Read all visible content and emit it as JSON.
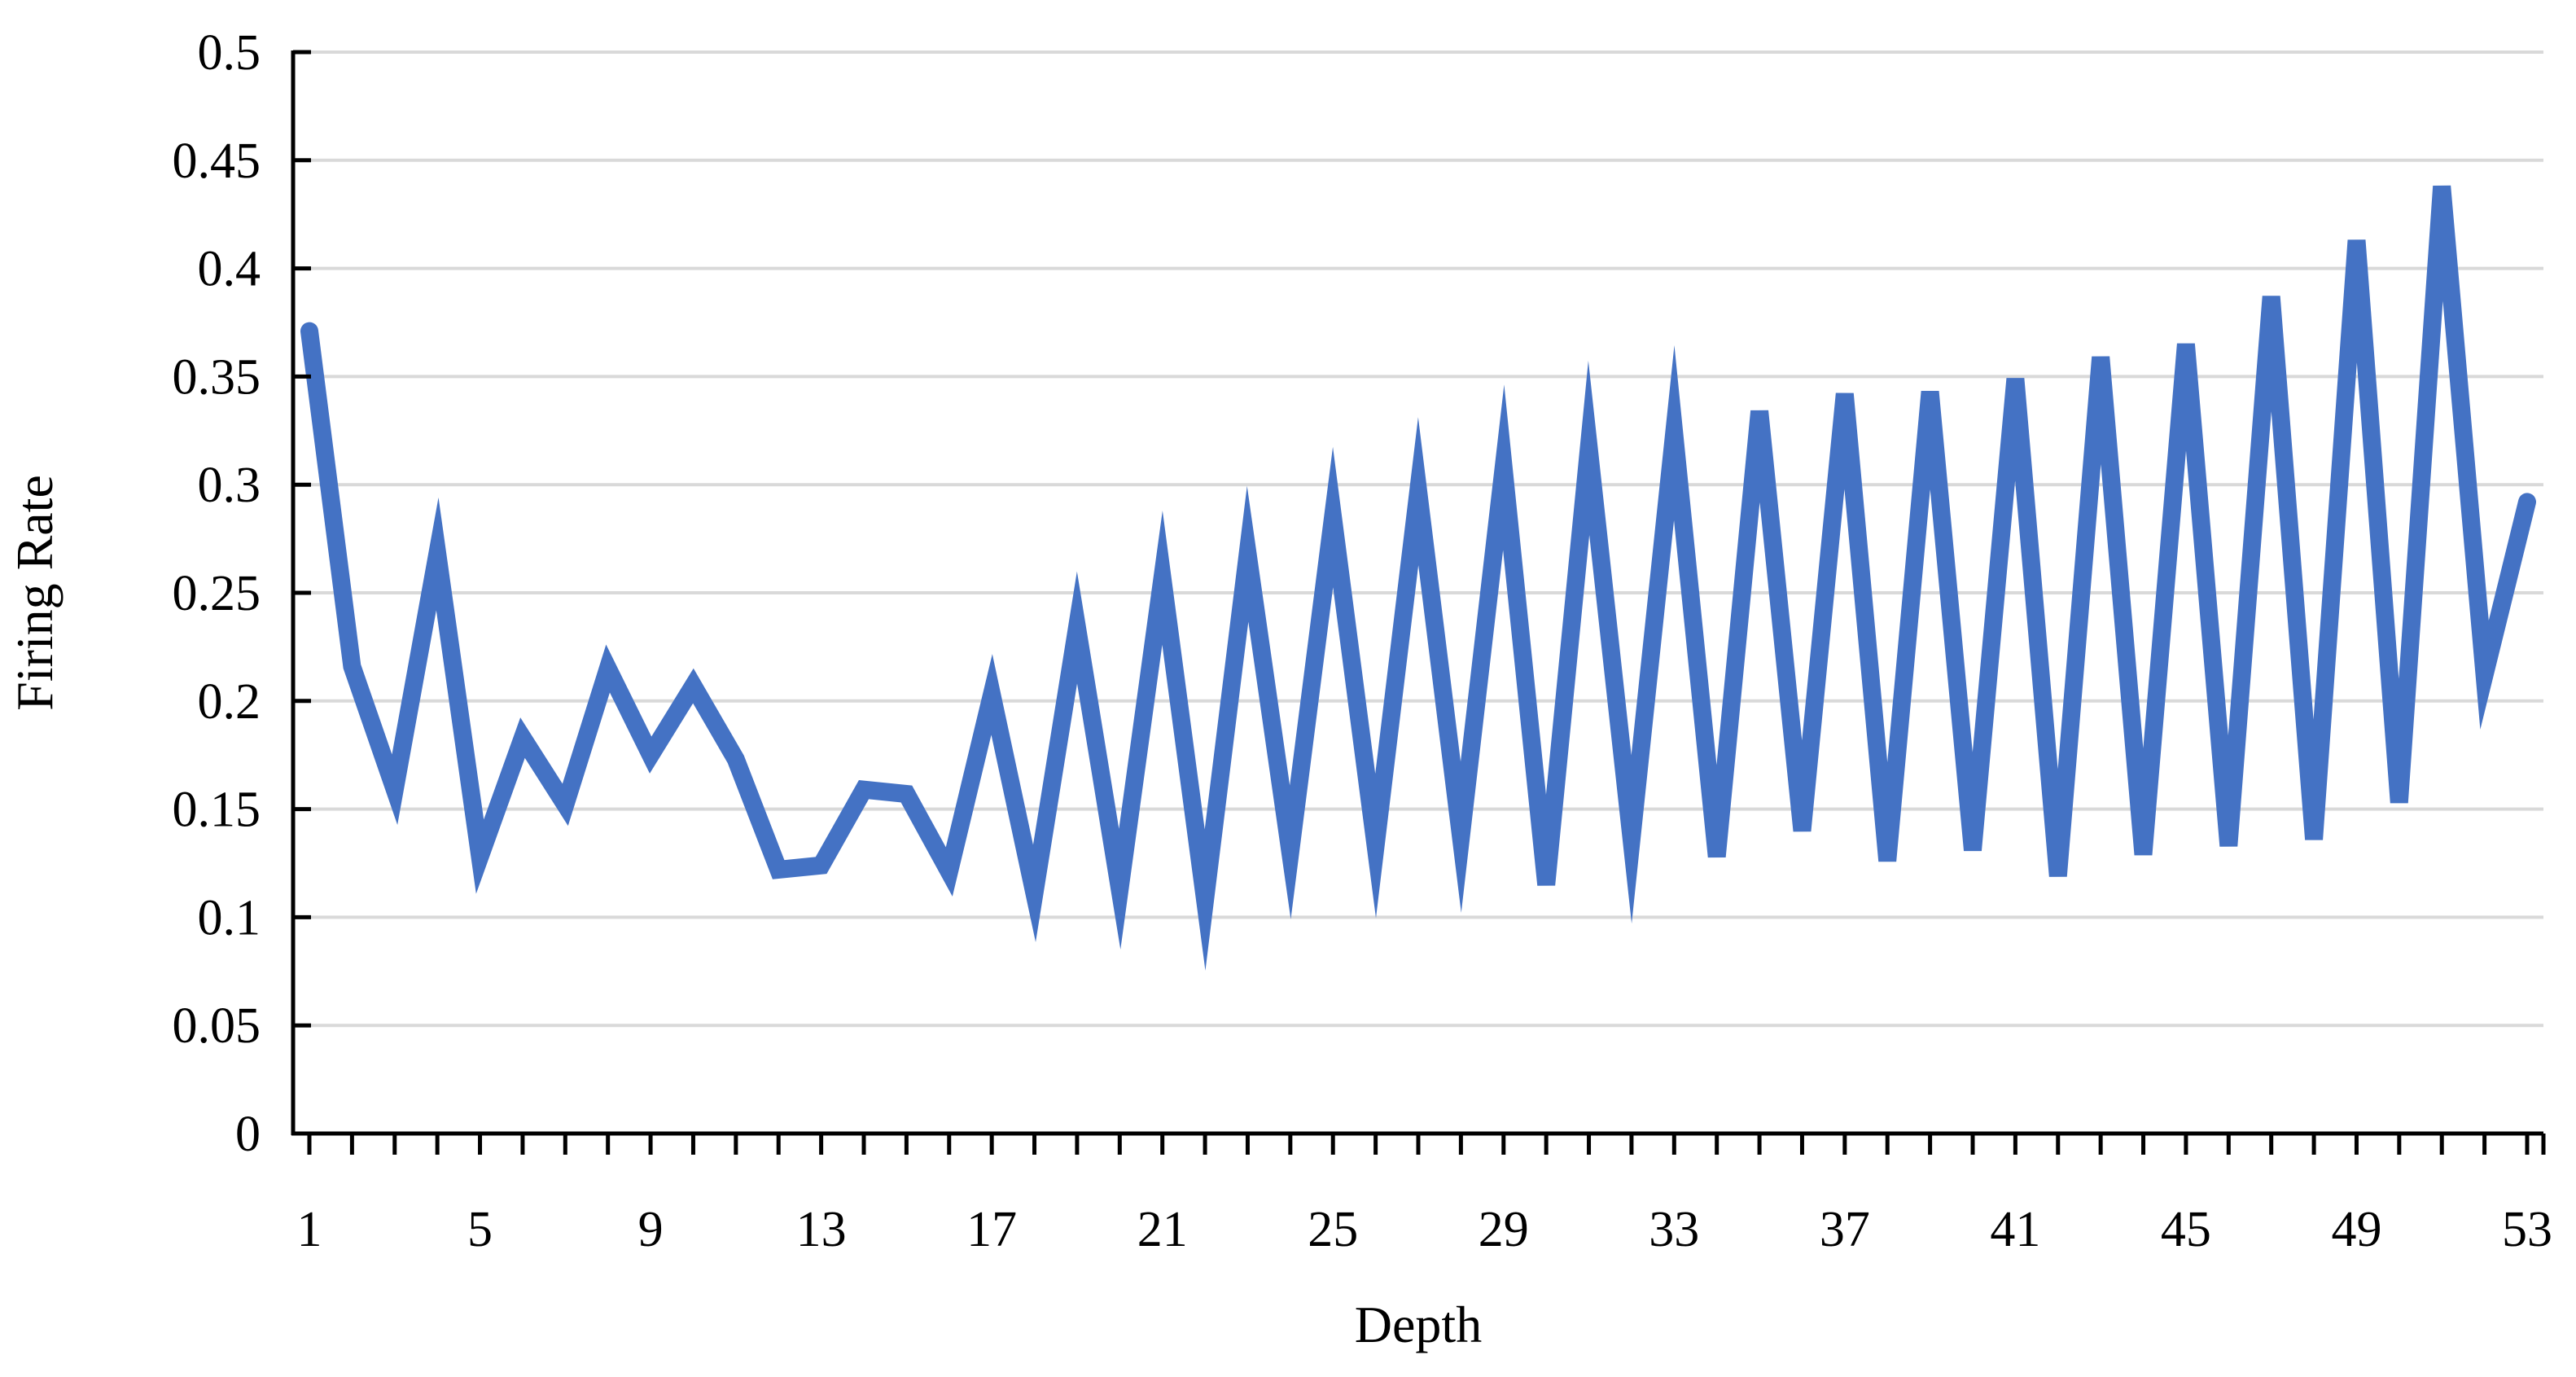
{
  "chart_data": {
    "type": "line",
    "title": "",
    "xlabel": "Depth",
    "ylabel": "Firing Rate",
    "x": [
      1,
      2,
      3,
      4,
      5,
      6,
      7,
      8,
      9,
      10,
      11,
      12,
      13,
      14,
      15,
      16,
      17,
      18,
      19,
      20,
      21,
      22,
      23,
      24,
      25,
      26,
      27,
      28,
      29,
      30,
      31,
      32,
      33,
      34,
      35,
      36,
      37,
      38,
      39,
      40,
      41,
      42,
      43,
      44,
      45,
      46,
      47,
      48,
      49,
      50,
      51,
      52,
      53
    ],
    "x_tick_labels": [
      "1",
      "5",
      "9",
      "13",
      "17",
      "21",
      "25",
      "29",
      "33",
      "37",
      "41",
      "45",
      "49",
      "53"
    ],
    "xlim": [
      1,
      53
    ],
    "ylim": [
      0,
      0.5
    ],
    "y_ticks": [
      0,
      0.05,
      0.1,
      0.15,
      0.2,
      0.25,
      0.3,
      0.35,
      0.4,
      0.45,
      0.5
    ],
    "y_tick_labels": [
      "0",
      "0.05",
      "0.1",
      "0.15",
      "0.2",
      "0.25",
      "0.3",
      "0.35",
      "0.4",
      "0.45",
      "0.5"
    ],
    "grid": "horizontal",
    "legend": "none",
    "series": [
      {
        "values": [
          0.371,
          0.216,
          0.159,
          0.268,
          0.128,
          0.183,
          0.152,
          0.215,
          0.175,
          0.207,
          0.173,
          0.122,
          0.124,
          0.159,
          0.157,
          0.121,
          0.203,
          0.111,
          0.234,
          0.113,
          0.257,
          0.108,
          0.268,
          0.13,
          0.285,
          0.133,
          0.297,
          0.137,
          0.308,
          0.115,
          0.317,
          0.136,
          0.324,
          0.128,
          0.334,
          0.14,
          0.342,
          0.126,
          0.343,
          0.131,
          0.349,
          0.119,
          0.359,
          0.129,
          0.365,
          0.133,
          0.387,
          0.136,
          0.413,
          0.153,
          0.438,
          0.212,
          0.292
        ],
        "color": "#4472c4"
      }
    ]
  }
}
